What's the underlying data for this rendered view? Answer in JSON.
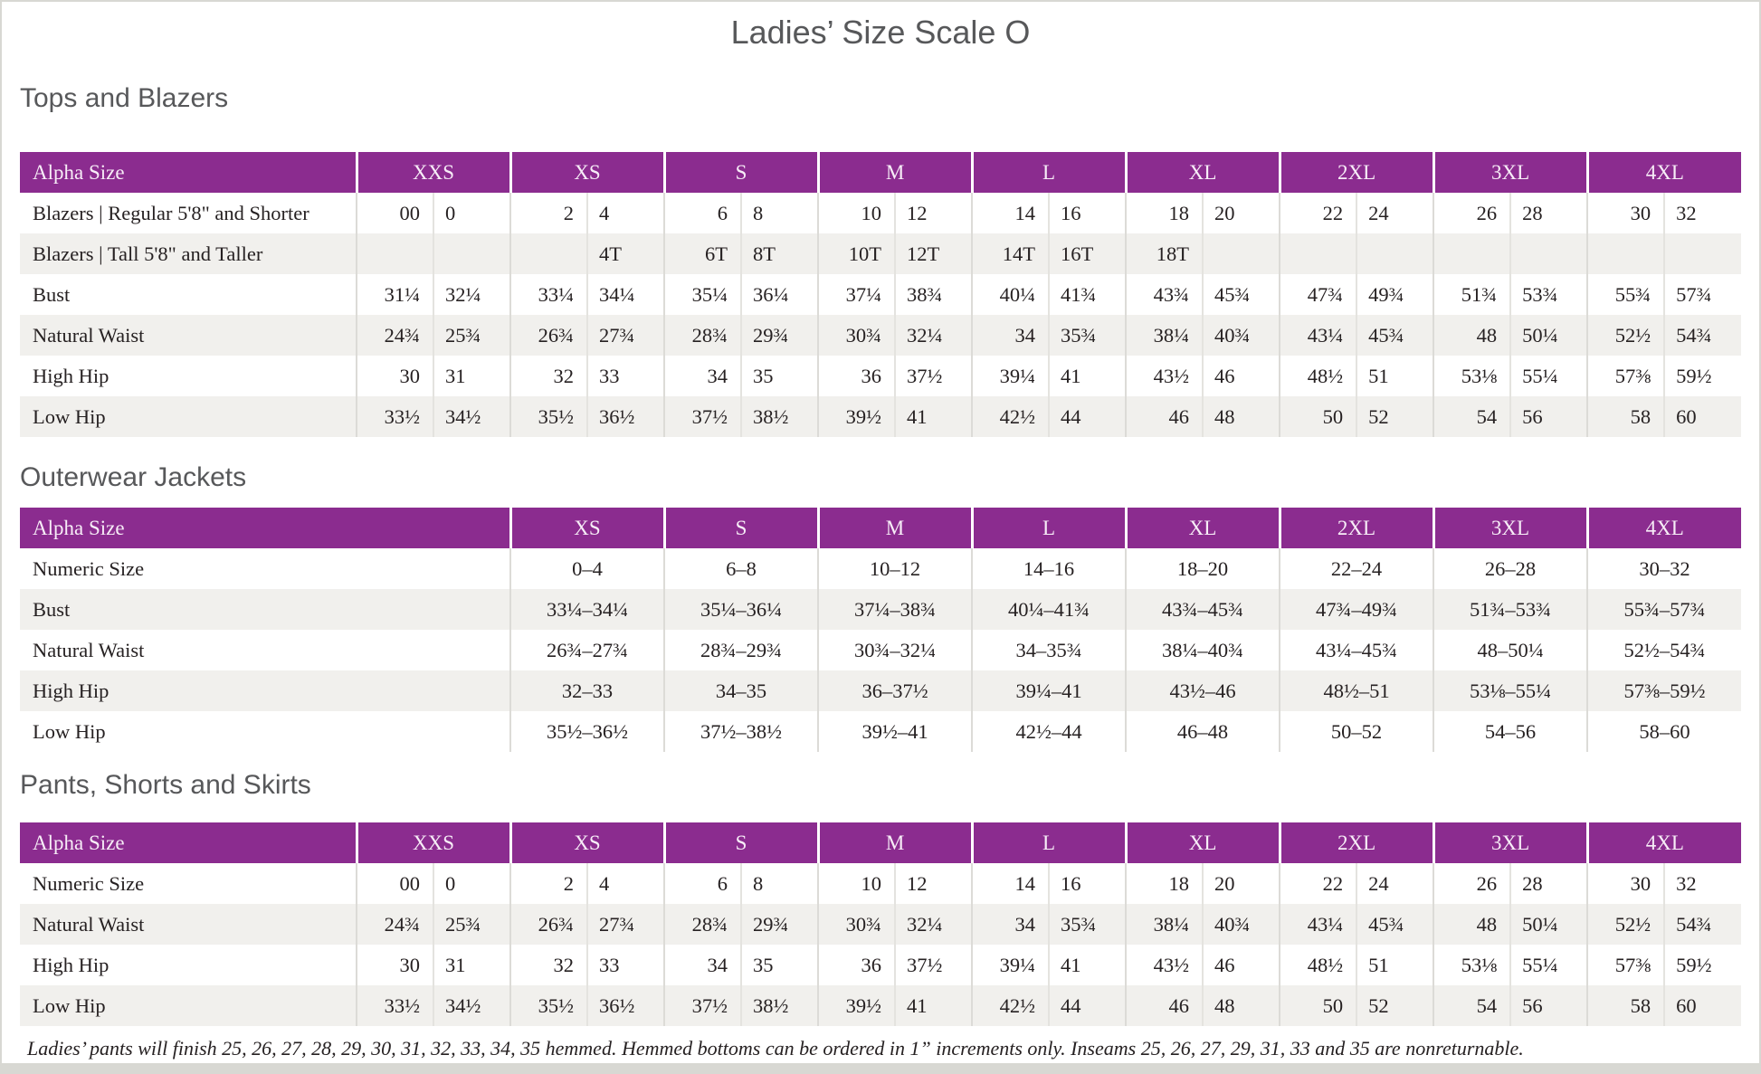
{
  "page": {
    "title": "Ladies’ Size Scale O",
    "footnote": "Ladies’ pants will finish 25, 26, 27, 28, 29, 30, 31, 32, 33, 34, 35 hemmed. Hemmed bottoms can be ordered in 1” increments only. Inseams 25, 26, 27, 29, 31, 33 and 35 are nonreturnable."
  },
  "colors": {
    "header_purple": "#8b2c8f",
    "row_alt_gray": "#f1f0ed",
    "heading_gray": "#57585a"
  },
  "tables": [
    {
      "section": "Tops and Blazers",
      "type": "paired",
      "corner_label": "Alpha Size",
      "sizes": [
        "XXS",
        "XS",
        "S",
        "M",
        "L",
        "XL",
        "2XL",
        "3XL",
        "4XL"
      ],
      "rows": [
        {
          "label": "Blazers  |  Regular 5'8\" and Shorter",
          "cells": [
            [
              "00",
              "0"
            ],
            [
              "2",
              "4"
            ],
            [
              "6",
              "8"
            ],
            [
              "10",
              "12"
            ],
            [
              "14",
              "16"
            ],
            [
              "18",
              "20"
            ],
            [
              "22",
              "24"
            ],
            [
              "26",
              "28"
            ],
            [
              "30",
              "32"
            ]
          ]
        },
        {
          "label": "Blazers  |  Tall 5'8\" and Taller",
          "cells": [
            [
              "",
              ""
            ],
            [
              "",
              "4T"
            ],
            [
              "6T",
              "8T"
            ],
            [
              "10T",
              "12T"
            ],
            [
              "14T",
              "16T"
            ],
            [
              "18T",
              ""
            ],
            [
              "",
              ""
            ],
            [
              "",
              ""
            ],
            [
              "",
              ""
            ]
          ]
        },
        {
          "label": "Bust",
          "cells": [
            [
              "31¼",
              "32¼"
            ],
            [
              "33¼",
              "34¼"
            ],
            [
              "35¼",
              "36¼"
            ],
            [
              "37¼",
              "38¾"
            ],
            [
              "40¼",
              "41¾"
            ],
            [
              "43¾",
              "45¾"
            ],
            [
              "47¾",
              "49¾"
            ],
            [
              "51¾",
              "53¾"
            ],
            [
              "55¾",
              "57¾"
            ]
          ]
        },
        {
          "label": "Natural Waist",
          "cells": [
            [
              "24¾",
              "25¾"
            ],
            [
              "26¾",
              "27¾"
            ],
            [
              "28¾",
              "29¾"
            ],
            [
              "30¾",
              "32¼"
            ],
            [
              "34",
              "35¾"
            ],
            [
              "38¼",
              "40¾"
            ],
            [
              "43¼",
              "45¾"
            ],
            [
              "48",
              "50¼"
            ],
            [
              "52½",
              "54¾"
            ]
          ]
        },
        {
          "label": "High Hip",
          "cells": [
            [
              "30",
              "31"
            ],
            [
              "32",
              "33"
            ],
            [
              "34",
              "35"
            ],
            [
              "36",
              "37½"
            ],
            [
              "39¼",
              "41"
            ],
            [
              "43½",
              "46"
            ],
            [
              "48½",
              "51"
            ],
            [
              "53⅛",
              "55¼"
            ],
            [
              "57⅜",
              "59½"
            ]
          ]
        },
        {
          "label": "Low Hip",
          "cells": [
            [
              "33½",
              "34½"
            ],
            [
              "35½",
              "36½"
            ],
            [
              "37½",
              "38½"
            ],
            [
              "39½",
              "41"
            ],
            [
              "42½",
              "44"
            ],
            [
              "46",
              "48"
            ],
            [
              "50",
              "52"
            ],
            [
              "54",
              "56"
            ],
            [
              "58",
              "60"
            ]
          ]
        }
      ]
    },
    {
      "section": "Outerwear Jackets",
      "type": "single",
      "corner_label": "Alpha Size",
      "sizes": [
        "XS",
        "S",
        "M",
        "L",
        "XL",
        "2XL",
        "3XL",
        "4XL"
      ],
      "rows": [
        {
          "label": "Numeric Size",
          "cells": [
            "0–4",
            "6–8",
            "10–12",
            "14–16",
            "18–20",
            "22–24",
            "26–28",
            "30–32"
          ]
        },
        {
          "label": "Bust",
          "cells": [
            "33¼–34¼",
            "35¼–36¼",
            "37¼–38¾",
            "40¼–41¾",
            "43¾–45¾",
            "47¾–49¾",
            "51¾–53¾",
            "55¾–57¾"
          ]
        },
        {
          "label": "Natural Waist",
          "cells": [
            "26¾–27¾",
            "28¾–29¾",
            "30¾–32¼",
            "34–35¾",
            "38¼–40¾",
            "43¼–45¾",
            "48–50¼",
            "52½–54¾"
          ]
        },
        {
          "label": "High Hip",
          "cells": [
            "32–33",
            "34–35",
            "36–37½",
            "39¼–41",
            "43½–46",
            "48½–51",
            "53⅛–55¼",
            "57⅜–59½"
          ]
        },
        {
          "label": "Low Hip",
          "cells": [
            "35½–36½",
            "37½–38½",
            "39½–41",
            "42½–44",
            "46–48",
            "50–52",
            "54–56",
            "58–60"
          ]
        }
      ]
    },
    {
      "section": "Pants, Shorts and Skirts",
      "type": "paired",
      "corner_label": "Alpha Size",
      "sizes": [
        "XXS",
        "XS",
        "S",
        "M",
        "L",
        "XL",
        "2XL",
        "3XL",
        "4XL"
      ],
      "rows": [
        {
          "label": "Numeric Size",
          "cells": [
            [
              "00",
              "0"
            ],
            [
              "2",
              "4"
            ],
            [
              "6",
              "8"
            ],
            [
              "10",
              "12"
            ],
            [
              "14",
              "16"
            ],
            [
              "18",
              "20"
            ],
            [
              "22",
              "24"
            ],
            [
              "26",
              "28"
            ],
            [
              "30",
              "32"
            ]
          ]
        },
        {
          "label": "Natural Waist",
          "cells": [
            [
              "24¾",
              "25¾"
            ],
            [
              "26¾",
              "27¾"
            ],
            [
              "28¾",
              "29¾"
            ],
            [
              "30¾",
              "32¼"
            ],
            [
              "34",
              "35¾"
            ],
            [
              "38¼",
              "40¾"
            ],
            [
              "43¼",
              "45¾"
            ],
            [
              "48",
              "50¼"
            ],
            [
              "52½",
              "54¾"
            ]
          ]
        },
        {
          "label": "High Hip",
          "cells": [
            [
              "30",
              "31"
            ],
            [
              "32",
              "33"
            ],
            [
              "34",
              "35"
            ],
            [
              "36",
              "37½"
            ],
            [
              "39¼",
              "41"
            ],
            [
              "43½",
              "46"
            ],
            [
              "48½",
              "51"
            ],
            [
              "53⅛",
              "55¼"
            ],
            [
              "57⅜",
              "59½"
            ]
          ]
        },
        {
          "label": "Low Hip",
          "cells": [
            [
              "33½",
              "34½"
            ],
            [
              "35½",
              "36½"
            ],
            [
              "37½",
              "38½"
            ],
            [
              "39½",
              "41"
            ],
            [
              "42½",
              "44"
            ],
            [
              "46",
              "48"
            ],
            [
              "50",
              "52"
            ],
            [
              "54",
              "56"
            ],
            [
              "58",
              "60"
            ]
          ]
        }
      ]
    }
  ]
}
